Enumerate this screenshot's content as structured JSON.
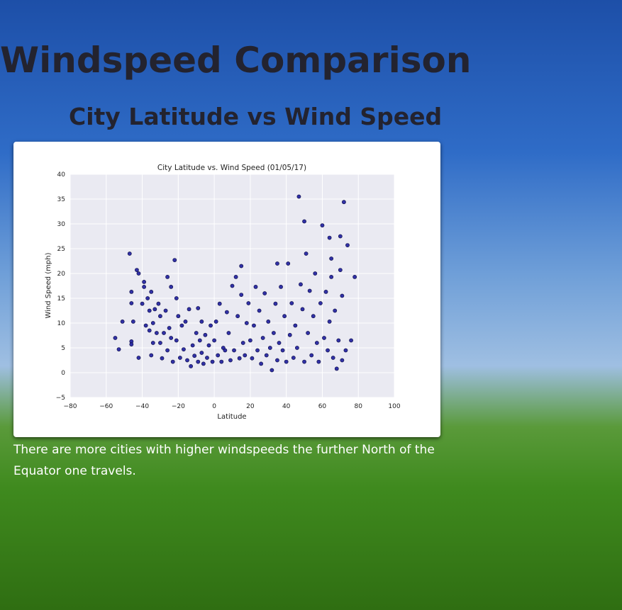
{
  "page": {
    "title": "Windspeed Comparison",
    "subtitle": "City Latitude vs Wind Speed",
    "caption": "There are more cities with higher windspeeds the further North of the Equator one travels."
  },
  "chart_data": {
    "type": "scatter",
    "title": "City Latitude vs. Wind Speed (01/05/17)",
    "x_label": "Latitude",
    "y_label": "Wind Speed (mph)",
    "color": "#1c1c9c",
    "edge_color": "#0b0b40",
    "grid": true,
    "xlim": [
      -80,
      100
    ],
    "ylim": [
      -5,
      40
    ],
    "xticks": [
      {
        "value": -80,
        "label": "−80"
      },
      {
        "value": -60,
        "label": "−60"
      },
      {
        "value": -40,
        "label": "−40"
      },
      {
        "value": -20,
        "label": "−20"
      },
      0,
      20,
      40,
      60,
      80,
      100
    ],
    "yticks": [
      {
        "value": -5,
        "label": "−5"
      },
      0,
      5,
      10,
      15,
      20,
      25,
      30,
      35,
      40
    ],
    "x": [
      -55,
      -53,
      -51,
      -47,
      -46,
      -46,
      -46,
      -46,
      -45,
      -43,
      -42,
      -42,
      -40,
      -39,
      -39,
      -38,
      -37,
      -36,
      -36,
      -35,
      -35,
      -34,
      -34,
      -33,
      -32,
      -31,
      -30,
      -30,
      -29,
      -28,
      -27,
      -26,
      -26,
      -25,
      -24,
      -24,
      -23,
      -22,
      -21,
      -21,
      -20,
      -19,
      -18,
      -17,
      -16,
      -15,
      -14,
      -13,
      -12,
      -11,
      -10,
      -9,
      -9,
      -8,
      -7,
      -7,
      -6,
      -5,
      -4,
      -3,
      -2,
      -1,
      0,
      1,
      2,
      3,
      4,
      5,
      6,
      7,
      8,
      9,
      10,
      11,
      12,
      13,
      14,
      15,
      15,
      16,
      17,
      18,
      19,
      20,
      21,
      22,
      23,
      24,
      25,
      26,
      27,
      28,
      29,
      30,
      31,
      32,
      33,
      34,
      35,
      35,
      36,
      37,
      38,
      39,
      40,
      41,
      42,
      43,
      44,
      45,
      46,
      47,
      48,
      49,
      50,
      50,
      51,
      52,
      53,
      54,
      55,
      56,
      57,
      58,
      59,
      60,
      61,
      62,
      63,
      64,
      64,
      65,
      65,
      66,
      67,
      68,
      69,
      70,
      70,
      71,
      71,
      72,
      73,
      74,
      76,
      78
    ],
    "values": [
      7,
      4.7,
      10.3,
      24,
      16.3,
      14,
      6.3,
      5.7,
      10.3,
      20.7,
      3,
      20,
      13.9,
      18.3,
      17.3,
      9.5,
      15,
      12.5,
      8.5,
      16.3,
      3.5,
      6,
      10,
      12.8,
      8,
      13.9,
      11.4,
      6,
      2.9,
      8,
      12.5,
      19.3,
      4.5,
      9,
      17.3,
      7,
      2.2,
      22.7,
      15,
      6.5,
      11.4,
      3,
      9.5,
      4.7,
      10.3,
      2.5,
      12.8,
      1.3,
      5.5,
      3.4,
      8,
      13,
      2.2,
      6.5,
      4,
      10.3,
      1.8,
      7.6,
      3,
      5.5,
      9.5,
      2.2,
      6.5,
      10.3,
      3.5,
      13.9,
      2.2,
      5,
      4.5,
      12.2,
      8,
      2.5,
      17.5,
      4.5,
      19.3,
      11.4,
      2.9,
      15.7,
      21.5,
      6,
      3.5,
      10,
      14,
      6.5,
      2.9,
      9.5,
      17.3,
      4.5,
      12.5,
      1.8,
      7,
      16,
      3.5,
      10.3,
      5,
      0.5,
      8,
      13.9,
      22,
      2.5,
      6,
      17.3,
      4.5,
      11.4,
      2.2,
      22,
      7.6,
      14,
      3,
      9.5,
      5,
      35.5,
      17.8,
      12.8,
      30.5,
      2.2,
      24,
      8,
      16.5,
      3.5,
      11.4,
      20,
      6,
      2.2,
      14,
      29.7,
      7,
      16.3,
      4.5,
      27.2,
      10.3,
      23,
      19.3,
      3,
      12.5,
      0.8,
      6.5,
      27.5,
      20.7,
      15.5,
      2.5,
      34.4,
      4.5,
      25.7,
      6.5,
      19.3
    ]
  }
}
